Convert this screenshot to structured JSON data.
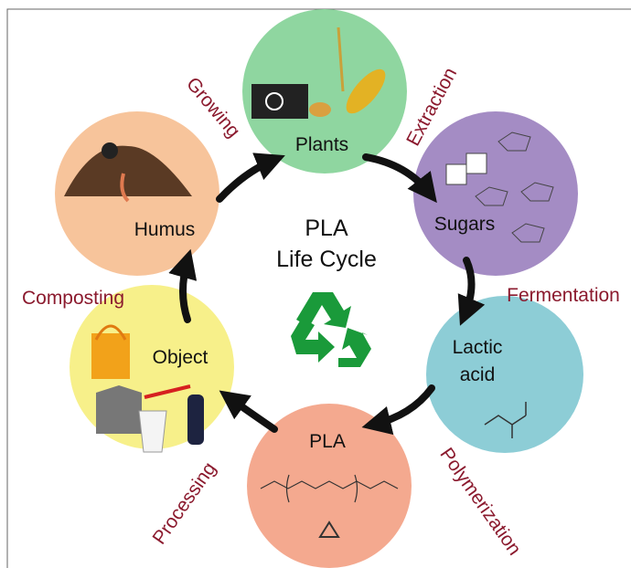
{
  "title_lines": [
    "PLA",
    "Life Cycle"
  ],
  "nodes": [
    {
      "label": "Plants"
    },
    {
      "label": "Sugars"
    },
    {
      "lines": [
        "Lactic",
        "acid"
      ]
    },
    {
      "label": "PLA"
    },
    {
      "label": "Object"
    },
    {
      "label": "Humus"
    }
  ],
  "steps": [
    "Growing",
    "Extraction",
    "Fermentation",
    "Polymerization",
    "Processing",
    "Composting"
  ]
}
